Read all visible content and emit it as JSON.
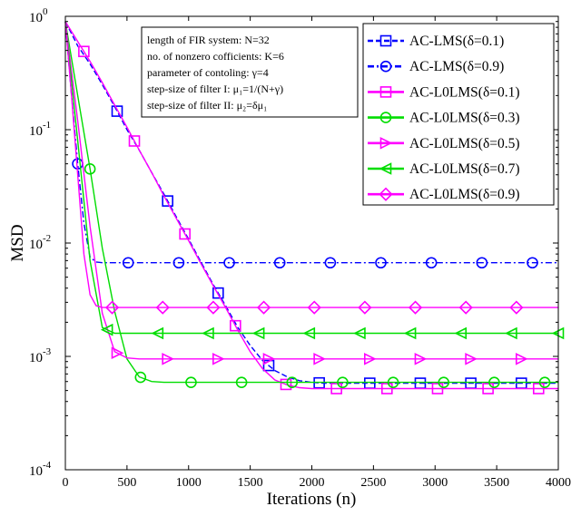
{
  "chart_data": {
    "type": "line",
    "title": "",
    "xlabel": "Iterations (n)",
    "ylabel": "MSD",
    "xlim": [
      0,
      4000
    ],
    "ylim": [
      0.0001,
      1
    ],
    "yscale": "log",
    "x_ticks": [
      0,
      500,
      1000,
      1500,
      2000,
      2500,
      3000,
      3500,
      4000
    ],
    "x_tick_labels": [
      "0",
      "500",
      "1000",
      "1500",
      "2000",
      "2500",
      "3000",
      "3500",
      "4000"
    ],
    "y_ticks": [
      0.0001,
      0.001,
      0.01,
      0.1,
      1
    ],
    "y_tick_labels": [
      {
        "base": "10",
        "exp": "-4"
      },
      {
        "base": "10",
        "exp": "-3"
      },
      {
        "base": "10",
        "exp": "-2"
      },
      {
        "base": "10",
        "exp": "-1"
      },
      {
        "base": "10",
        "exp": "0"
      }
    ],
    "grid": false,
    "legend_position": "top-right",
    "annotation_lines": [
      "length of FIR system: N=32",
      "no. of nonzero cofficients: K=6",
      "parameter of contoling: γ=4",
      "step-size of filter I: μ₁=1/(N+γ)",
      "step-size of filter II: μ₂=δμ₁"
    ],
    "series": [
      {
        "name": "AC-LMS(δ=0.1)",
        "color": "#0000ff",
        "line": "dashed",
        "marker": "square",
        "x": [
          0,
          100,
          200,
          300,
          400,
          500,
          600,
          700,
          800,
          900,
          1000,
          1100,
          1200,
          1300,
          1400,
          1500,
          1600,
          1700,
          1800,
          1900,
          2000,
          2100,
          2200,
          2400,
          2600,
          2800,
          3000,
          3200,
          3400,
          3600,
          3800,
          4000
        ],
        "y": [
          0.9,
          0.55,
          0.38,
          0.25,
          0.16,
          0.1,
          0.066,
          0.042,
          0.027,
          0.017,
          0.0108,
          0.0068,
          0.0043,
          0.0028,
          0.0018,
          0.00125,
          0.00092,
          0.00075,
          0.00066,
          0.00061,
          0.00059,
          0.00058,
          0.00058,
          0.00058,
          0.00058,
          0.00058,
          0.00058,
          0.00058,
          0.00058,
          0.00058,
          0.00058,
          0.00058
        ],
        "marker_x": [
          420,
          830,
          1240,
          1650,
          2060,
          2470,
          2880,
          3290,
          3700
        ]
      },
      {
        "name": "AC-LMS(δ=0.9)",
        "color": "#0000ff",
        "line": "dashdot",
        "marker": "circle",
        "x": [
          0,
          50,
          100,
          150,
          200,
          250,
          300,
          400,
          600,
          800,
          1000,
          1500,
          2000,
          2500,
          3000,
          3500,
          4000
        ],
        "y": [
          0.9,
          0.2,
          0.05,
          0.015,
          0.0075,
          0.0068,
          0.0067,
          0.0067,
          0.0067,
          0.0067,
          0.0067,
          0.0067,
          0.0067,
          0.0067,
          0.0067,
          0.0067,
          0.0067
        ],
        "marker_x": [
          100,
          510,
          920,
          1330,
          1740,
          2150,
          2560,
          2970,
          3380,
          3790
        ]
      },
      {
        "name": "AC-L0LMS(δ=0.1)",
        "color": "#ff00ff",
        "line": "solid",
        "marker": "square",
        "x": [
          0,
          100,
          200,
          300,
          400,
          500,
          600,
          700,
          800,
          900,
          1000,
          1100,
          1200,
          1300,
          1400,
          1500,
          1600,
          1700,
          1800,
          1900,
          2000,
          2200,
          2400,
          2600,
          2800,
          3000,
          3200,
          3400,
          3600,
          3800,
          4000
        ],
        "y": [
          0.9,
          0.6,
          0.4,
          0.26,
          0.165,
          0.105,
          0.066,
          0.042,
          0.026,
          0.0165,
          0.0105,
          0.0066,
          0.0042,
          0.0027,
          0.0017,
          0.0011,
          0.00078,
          0.00062,
          0.00056,
          0.00053,
          0.00052,
          0.00052,
          0.00052,
          0.00052,
          0.00052,
          0.00052,
          0.00052,
          0.00052,
          0.00052,
          0.00052,
          0.00052
        ],
        "marker_x": [
          150,
          560,
          970,
          1380,
          1790,
          2200,
          2610,
          3020,
          3430,
          3840
        ]
      },
      {
        "name": "AC-L0LMS(δ=0.3)",
        "color": "#00dd00",
        "line": "solid",
        "marker": "circle",
        "x": [
          0,
          100,
          200,
          300,
          400,
          500,
          600,
          700,
          800,
          1000,
          1500,
          2000,
          2500,
          3000,
          3500,
          4000
        ],
        "y": [
          0.9,
          0.2,
          0.045,
          0.009,
          0.0025,
          0.00095,
          0.00066,
          0.0006,
          0.00059,
          0.00059,
          0.00059,
          0.00059,
          0.00059,
          0.00059,
          0.00059,
          0.00059
        ],
        "marker_x": [
          200,
          610,
          1020,
          1430,
          1840,
          2250,
          2660,
          3070,
          3480,
          3890
        ]
      },
      {
        "name": "AC-L0LMS(δ=0.5)",
        "color": "#ff00ff",
        "line": "solid",
        "marker": "triangle-right",
        "x": [
          0,
          100,
          200,
          300,
          400,
          500,
          600,
          800,
          1000,
          1500,
          2000,
          2500,
          3000,
          3500,
          4000
        ],
        "y": [
          0.9,
          0.12,
          0.014,
          0.0024,
          0.0011,
          0.00097,
          0.00095,
          0.00095,
          0.00095,
          0.00095,
          0.00095,
          0.00095,
          0.00095,
          0.00095,
          0.00095
        ],
        "marker_x": [
          420,
          830,
          1240,
          1650,
          2060,
          2470,
          2880,
          3290,
          3700
        ]
      },
      {
        "name": "AC-L0LMS(δ=0.7)",
        "color": "#00dd00",
        "line": "solid",
        "marker": "triangle-left",
        "x": [
          0,
          100,
          200,
          300,
          400,
          500,
          600,
          800,
          1000,
          1500,
          2000,
          2500,
          3000,
          3500,
          4000
        ],
        "y": [
          0.9,
          0.08,
          0.007,
          0.0018,
          0.0016,
          0.0016,
          0.0016,
          0.0016,
          0.0016,
          0.0016,
          0.0016,
          0.0016,
          0.0016,
          0.0016,
          0.0016
        ],
        "marker_x": [
          340,
          750,
          1160,
          1570,
          1980,
          2390,
          2800,
          3210,
          3620,
          4000
        ]
      },
      {
        "name": "AC-L0LMS(δ=0.9)",
        "color": "#ff00ff",
        "line": "solid",
        "marker": "diamond",
        "x": [
          0,
          50,
          100,
          150,
          200,
          250,
          300,
          400,
          600,
          1000,
          1500,
          2000,
          2500,
          3000,
          3500,
          4000
        ],
        "y": [
          0.9,
          0.2,
          0.04,
          0.008,
          0.0035,
          0.0028,
          0.0027,
          0.0027,
          0.0027,
          0.0027,
          0.0027,
          0.0027,
          0.0027,
          0.0027,
          0.0027,
          0.0027
        ],
        "marker_x": [
          380,
          790,
          1200,
          1610,
          2020,
          2430,
          2840,
          3250,
          3660
        ]
      }
    ]
  }
}
